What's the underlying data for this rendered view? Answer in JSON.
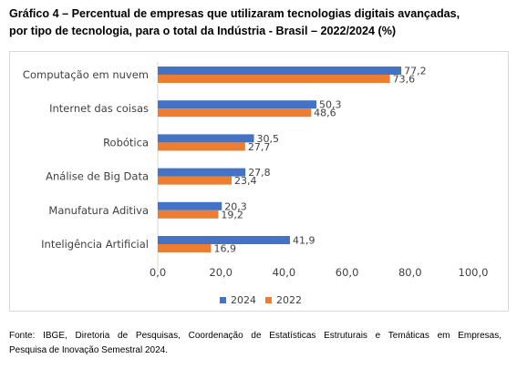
{
  "title_lines": [
    "Gráfico 4 – Percentual de empresas que utilizaram tecnologias digitais avançadas,",
    "por tipo de tecnologia, para o total da Indústria - Brasil – 2022/2024 (%)"
  ],
  "source_lines": [
    "Fonte: IBGE, Diretoria de Pesquisas, Coordenação de Estatísticas Estruturais e Temáticas em Empresas,",
    "Pesquisa de Inovação Semestral 2024."
  ],
  "colors": {
    "s2024": "#4472C4",
    "s2022": "#ED7D31"
  },
  "chart_data": {
    "type": "bar",
    "orientation": "horizontal",
    "categories": [
      "Computação em nuvem",
      "Internet das coisas",
      "Robótica",
      "Análise de Big Data",
      "Manufatura Aditiva",
      "Inteligência Artificial"
    ],
    "series": [
      {
        "name": "2024",
        "values": [
          77.2,
          50.3,
          30.5,
          27.8,
          20.3,
          41.9
        ],
        "labels": [
          "77,2",
          "50,3",
          "30,5",
          "27,8",
          "20,3",
          "41,9"
        ]
      },
      {
        "name": "2022",
        "values": [
          73.6,
          48.6,
          27.7,
          23.4,
          19.2,
          16.9
        ],
        "labels": [
          "73,6",
          "48,6",
          "27,7",
          "23,4",
          "19,2",
          "16,9"
        ]
      }
    ],
    "xlim": [
      0,
      100
    ],
    "xticks": [
      0,
      20,
      40,
      60,
      80,
      100
    ],
    "xtick_labels": [
      "0,0",
      "20,0",
      "40,0",
      "60,0",
      "80,0",
      "100,0"
    ],
    "grid": false,
    "legend_position": "bottom"
  }
}
